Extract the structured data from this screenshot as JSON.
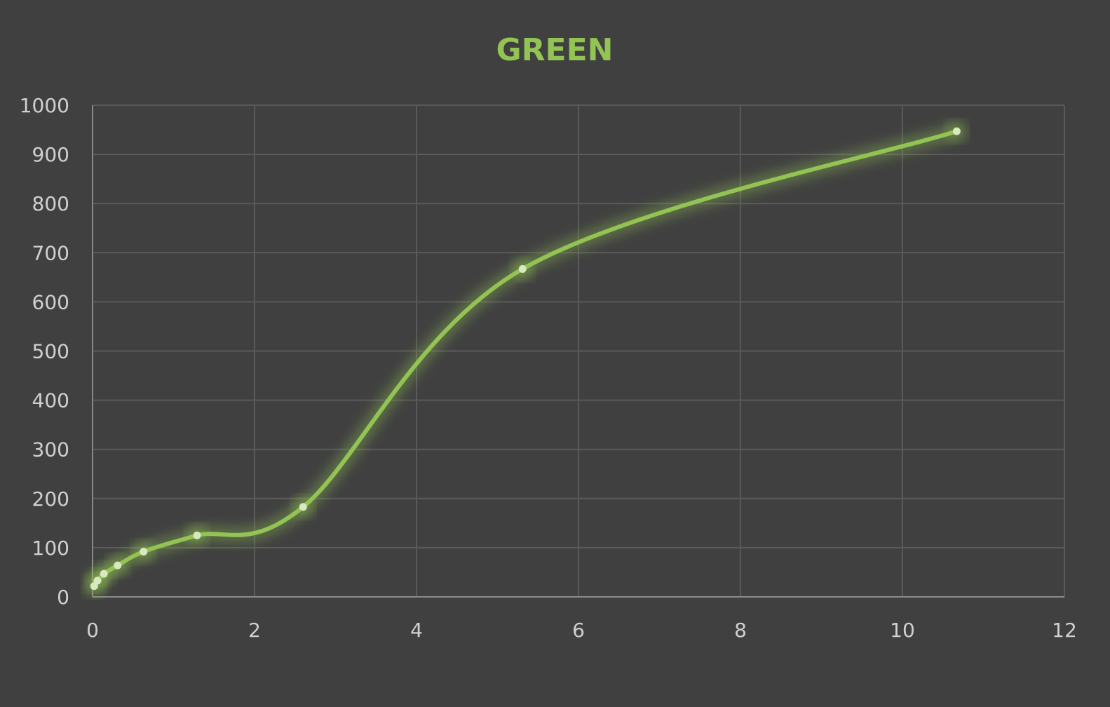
{
  "chart_data": {
    "type": "scatter",
    "title": "GREEN",
    "xlabel": "",
    "ylabel": "",
    "xlim": [
      0,
      12
    ],
    "ylim": [
      0,
      1000
    ],
    "x_ticks": [
      0,
      2,
      4,
      6,
      8,
      10,
      12
    ],
    "y_ticks": [
      0,
      100,
      200,
      300,
      400,
      500,
      600,
      700,
      800,
      900,
      1000
    ],
    "grid": true,
    "smooth_line": true,
    "series": [
      {
        "color": "#92c353",
        "marker_color": "#d8e8bf",
        "points": [
          {
            "x": 0.02,
            "y": 22
          },
          {
            "x": 0.06,
            "y": 33
          },
          {
            "x": 0.14,
            "y": 47
          },
          {
            "x": 0.31,
            "y": 64
          },
          {
            "x": 0.63,
            "y": 92
          },
          {
            "x": 1.29,
            "y": 125
          },
          {
            "x": 2.6,
            "y": 183
          },
          {
            "x": 5.31,
            "y": 667
          },
          {
            "x": 10.67,
            "y": 947
          }
        ]
      }
    ],
    "colors": {
      "background": "#404040",
      "grid": "#5a5a5a",
      "axis": "#8a8a8a",
      "title": "#92c353",
      "tick_text": "#d0d0d0"
    }
  }
}
